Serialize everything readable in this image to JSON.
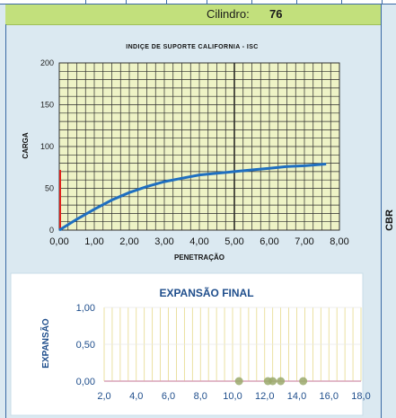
{
  "header": {
    "cilindro_label": "Cilindro:",
    "cilindro_value": "76"
  },
  "side_label": "CBR",
  "colors": {
    "header_green": "#c2e07c",
    "plot_bg": "#eef3c6",
    "curve_blue": "#1f6fc0",
    "marker_red": "#e0201b",
    "expansion_blue": "#1f4e8c",
    "expansion_point": "#9aa96b"
  },
  "chart_data": [
    {
      "type": "line",
      "title": "INDIÇE DE SUPORTE CALIFORNIA - ISC",
      "xlabel": "PENETRAÇÃO",
      "ylabel": "CARGA",
      "xlim": [
        0,
        8
      ],
      "ylim": [
        0,
        200
      ],
      "x_ticks": [
        "0,00",
        "1,00",
        "2,00",
        "3,00",
        "4,00",
        "5,00",
        "6,00",
        "7,00",
        "8,00"
      ],
      "y_ticks": [
        "0",
        "50",
        "100",
        "150",
        "200"
      ],
      "grid": true,
      "series": [
        {
          "points": [
            [
              0,
              0
            ],
            [
              0.5,
              13
            ],
            [
              1.0,
              25
            ],
            [
              1.5,
              36
            ],
            [
              2.0,
              45
            ],
            [
              2.5,
              52
            ],
            [
              3.0,
              58
            ],
            [
              3.5,
              62
            ],
            [
              4.0,
              66
            ],
            [
              4.5,
              68
            ],
            [
              5.0,
              70
            ],
            [
              5.5,
              72
            ],
            [
              6.0,
              74
            ],
            [
              6.5,
              76
            ],
            [
              7.0,
              77
            ],
            [
              7.62,
              79
            ]
          ]
        }
      ],
      "red_marker": {
        "x": 0,
        "y_range": [
          0,
          72
        ]
      }
    },
    {
      "type": "scatter",
      "title": "EXPANSÃO FINAL",
      "ylabel": "EXPANSÃO",
      "xlim": [
        2.0,
        18.0
      ],
      "ylim": [
        0,
        1
      ],
      "x_ticks": [
        "2,0",
        "4,0",
        "6,0",
        "8,0",
        "10,0",
        "12,0",
        "14,0",
        "16,0",
        "18,0"
      ],
      "y_ticks": [
        "0,00",
        "0,50",
        "1,00"
      ],
      "grid": true,
      "points": [
        [
          10.4,
          0
        ],
        [
          12.2,
          0
        ],
        [
          12.5,
          0
        ],
        [
          13.0,
          0
        ],
        [
          14.4,
          0
        ]
      ]
    }
  ]
}
